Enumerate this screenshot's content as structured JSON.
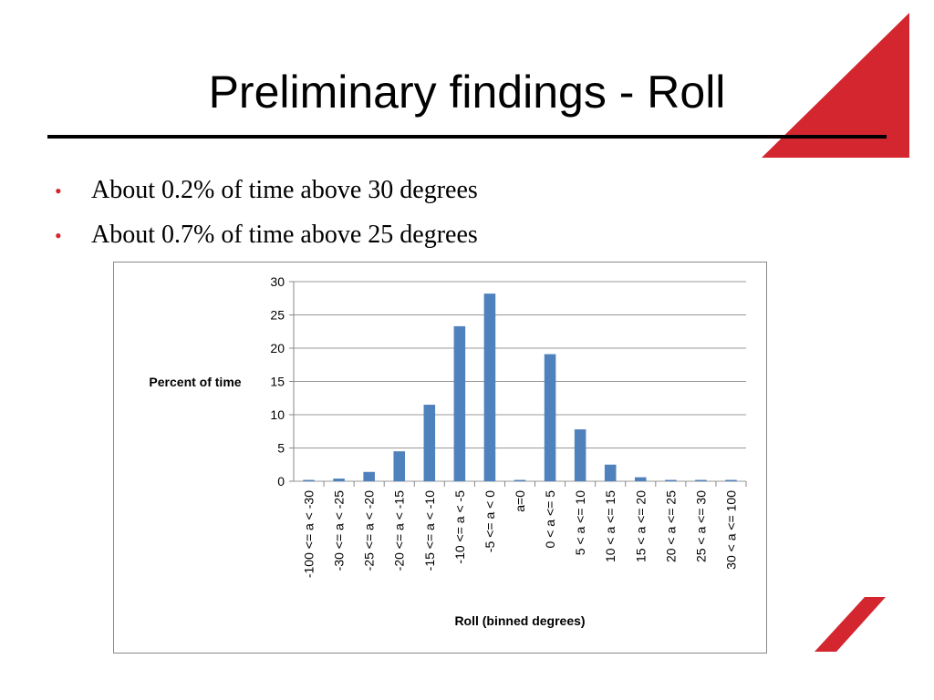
{
  "slide": {
    "title": "Preliminary findings - Roll",
    "bullets": [
      "About 0.2% of time above 30 degrees",
      "About 0.7% of time above 25 degrees"
    ]
  },
  "chart_data": {
    "type": "bar",
    "categories": [
      "-100 <= a < -30",
      "-30 <= a < -25",
      "-25 <= a < -20",
      "-20 <= a < -15",
      "-15 <= a < -10",
      "-10 <= a < -5",
      "-5 <= a < 0",
      "a=0",
      "0 < a <= 5",
      "5 < a <= 10",
      "10 < a <= 15",
      "15 < a <= 20",
      "20 < a <= 25",
      "25 < a <= 30",
      "30 < a <= 100"
    ],
    "values": [
      0.2,
      0.4,
      1.4,
      4.5,
      11.5,
      23.3,
      28.2,
      0.2,
      19.1,
      7.8,
      2.5,
      0.6,
      0.2,
      0.2,
      0.2
    ],
    "color": "#4f81bd",
    "x_label": "Roll (binned degrees)",
    "y_label": "Percent of time",
    "ylim": [
      0,
      30
    ],
    "yticks": [
      0,
      5,
      10,
      15,
      20,
      25,
      30
    ],
    "grid": true
  }
}
